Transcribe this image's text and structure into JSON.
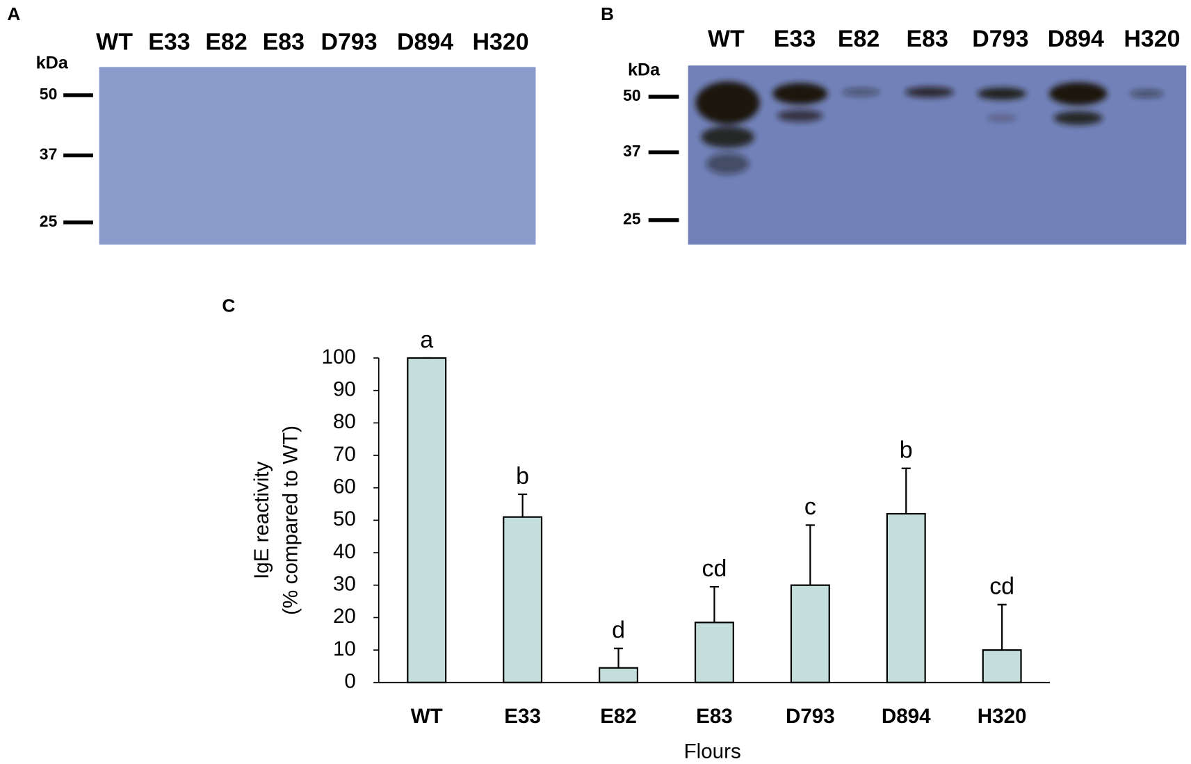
{
  "blots": [
    {
      "label": "A",
      "unit": "kDa",
      "lanes": [
        "WT",
        "E33",
        "E82",
        "E83",
        "D793",
        "D894",
        "H320"
      ],
      "markers": [
        50,
        37,
        25
      ]
    },
    {
      "label": "B",
      "unit": "kDa",
      "lanes": [
        "WT",
        "E33",
        "E82",
        "E83",
        "D793",
        "D894",
        "H320"
      ],
      "markers": [
        50,
        37,
        25
      ]
    }
  ],
  "chart_data": {
    "type": "bar",
    "panel_label": "C",
    "categories": [
      "WT",
      "E33",
      "E82",
      "E83",
      "D793",
      "D894",
      "H320"
    ],
    "values": [
      100,
      51,
      4.5,
      18.5,
      30,
      52,
      10
    ],
    "errors": [
      0,
      7,
      6,
      11,
      18.5,
      14,
      14
    ],
    "significance_letters": [
      "a",
      "b",
      "d",
      "cd",
      "c",
      "b",
      "cd"
    ],
    "color": "#c4dfdb",
    "xlabel": "Flours",
    "ylabel": [
      "IgE reactivity",
      "(% compared to WT)"
    ],
    "ylim": [
      0,
      100
    ],
    "yticks": [
      0,
      10,
      20,
      30,
      40,
      50,
      60,
      70,
      80,
      90,
      100
    ]
  }
}
